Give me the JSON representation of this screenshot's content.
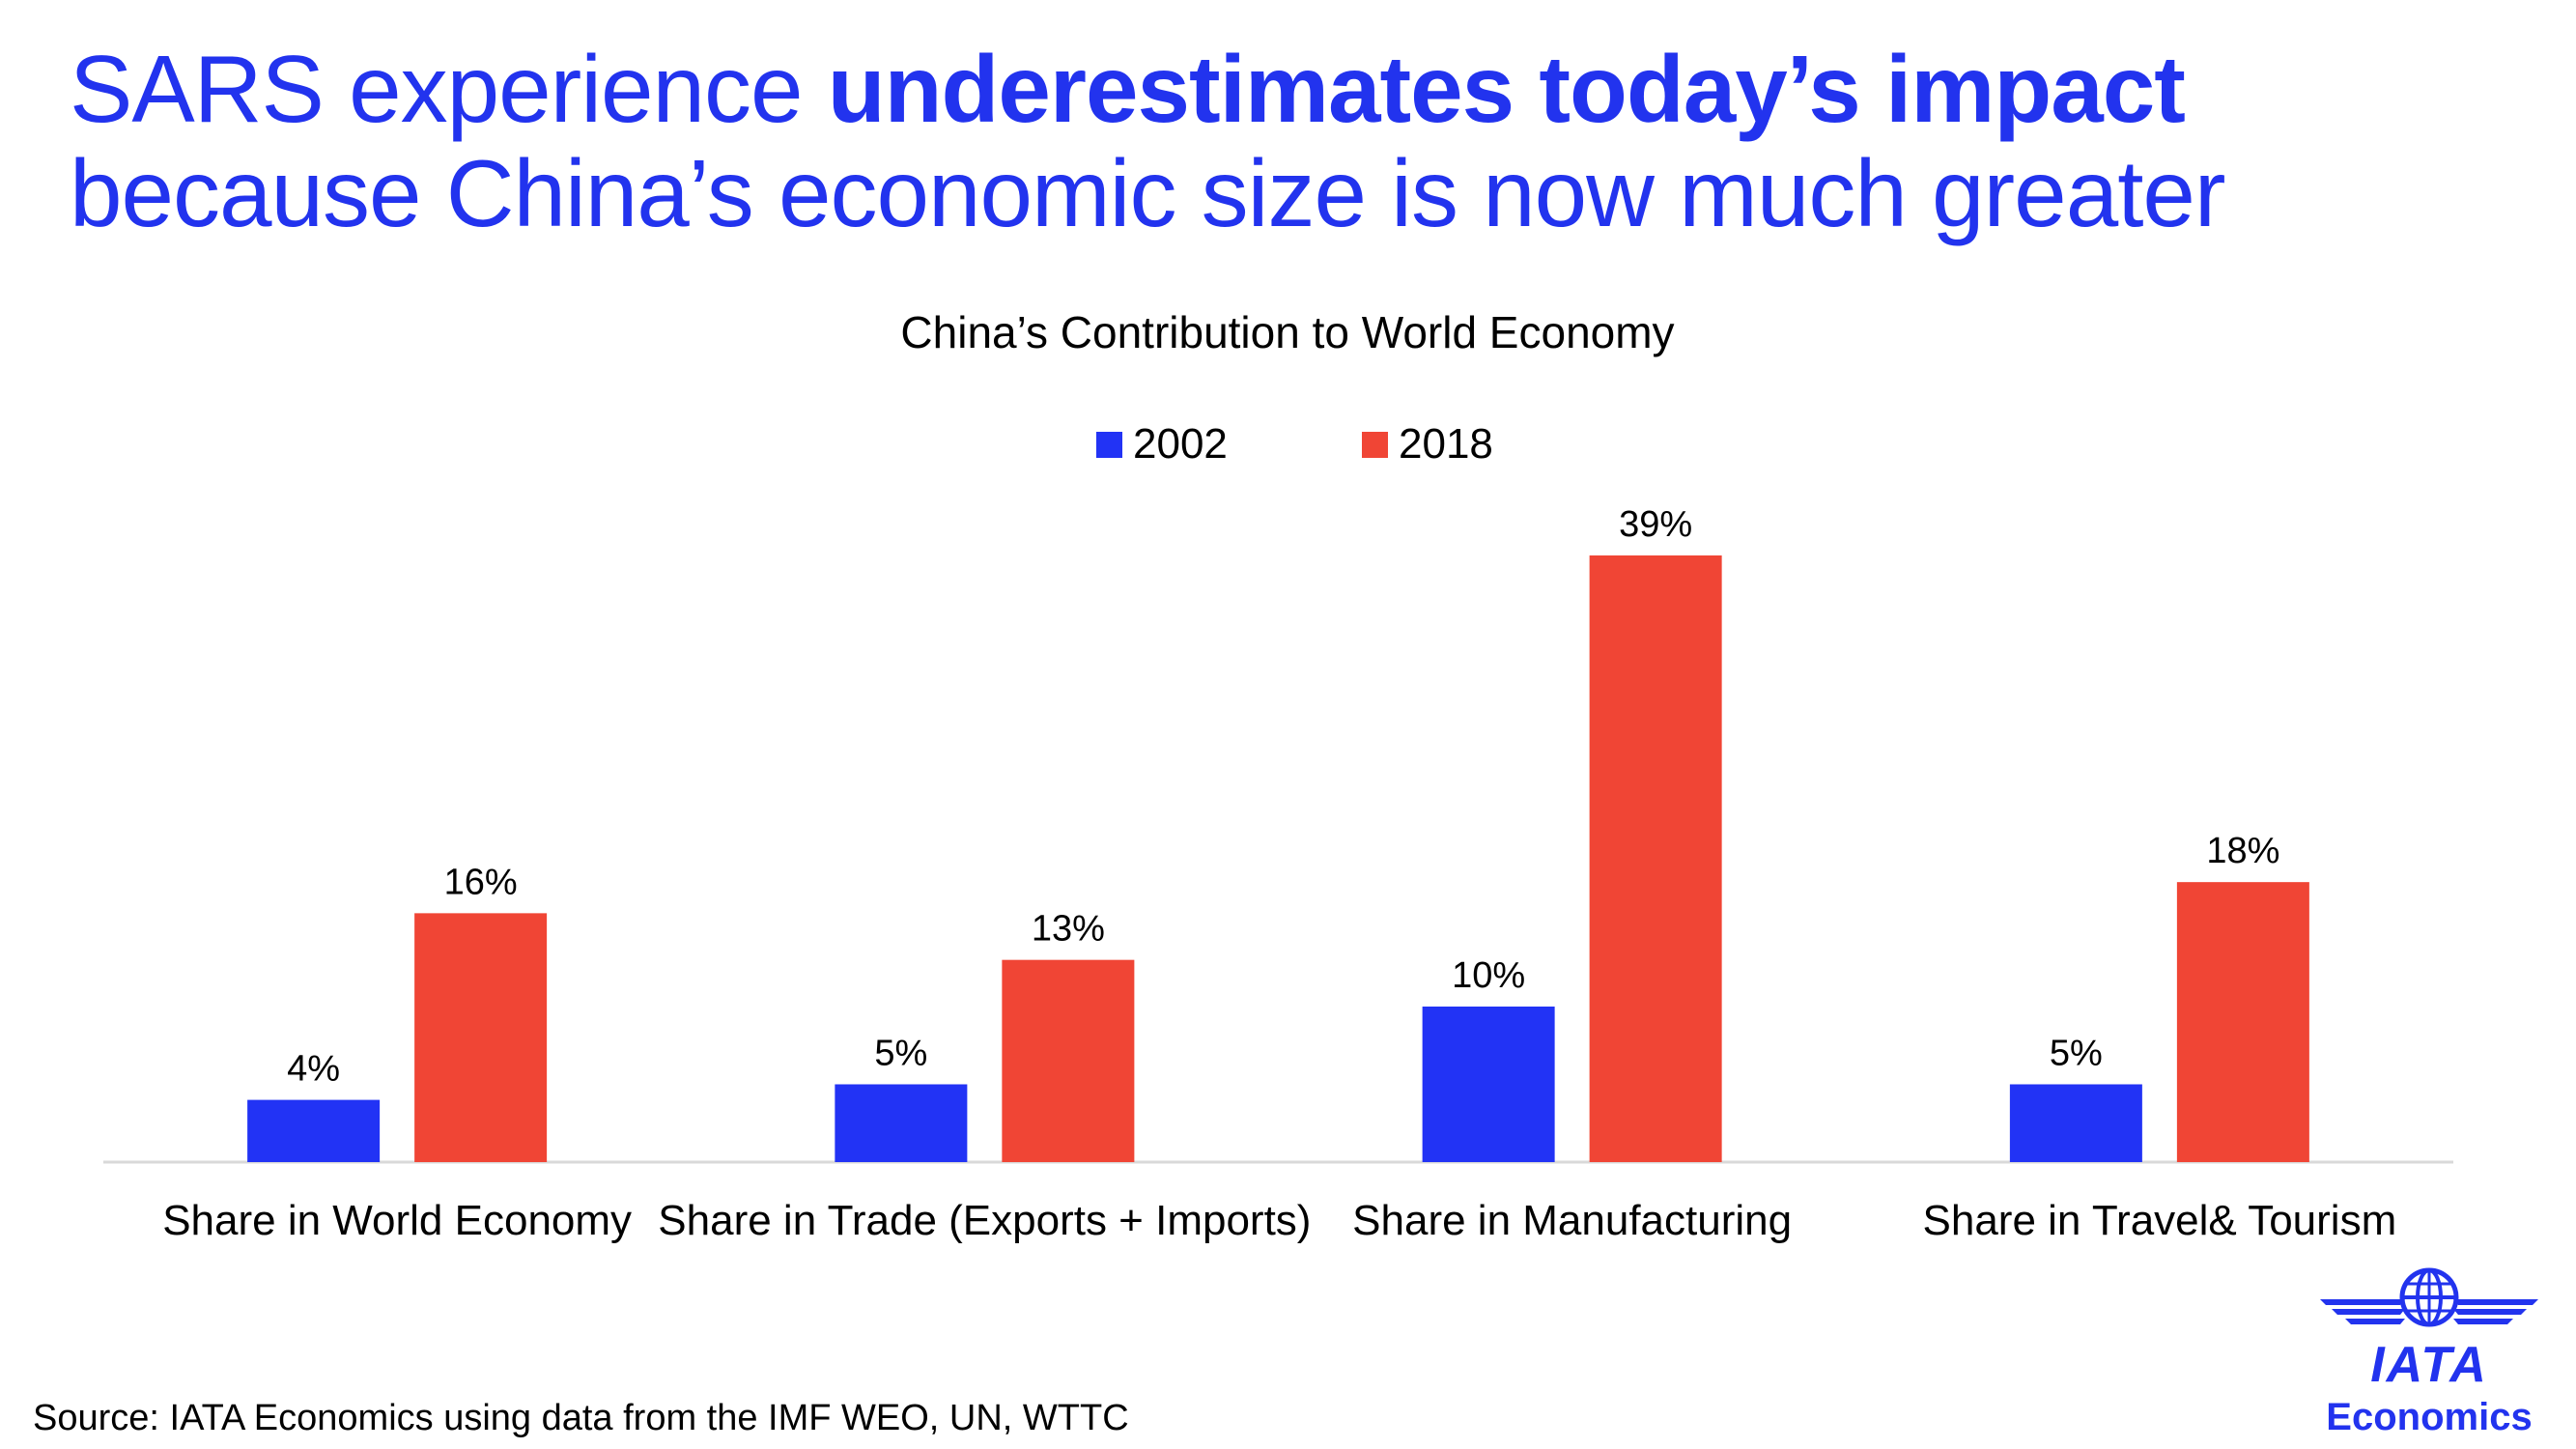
{
  "headline": {
    "part1": "SARS experience ",
    "part2_bold": "underestimates today’s impact",
    "line2": "because China’s economic size is now much greater"
  },
  "source": "Source: IATA Economics using data from the IMF WEO, UN, WTTC",
  "logo": {
    "name": "IATA",
    "subtitle": "Economics",
    "icon": "globe-wings-icon"
  },
  "colors": {
    "accent": "#2233ee",
    "series_2002": "#2233f5",
    "series_2018": "#f04535"
  },
  "chart_data": {
    "type": "bar",
    "title": "China’s Contribution to World Economy",
    "categories": [
      "Share in World Economy",
      "Share in Trade (Exports + Imports)",
      "Share in Manufacturing",
      "Share in Travel& Tourism"
    ],
    "series": [
      {
        "name": "2002",
        "values": [
          4,
          5,
          10,
          5
        ],
        "labels": [
          "4%",
          "5%",
          "10%",
          "5%"
        ]
      },
      {
        "name": "2018",
        "values": [
          16,
          13,
          39,
          18
        ],
        "labels": [
          "16%",
          "13%",
          "39%",
          "18%"
        ]
      }
    ],
    "ylim": [
      0,
      40
    ],
    "xlabel": "",
    "ylabel": "",
    "grid": false,
    "legend": "top-center"
  }
}
